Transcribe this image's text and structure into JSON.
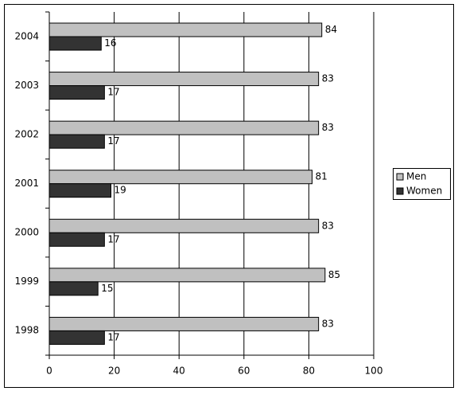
{
  "chart_data": {
    "type": "bar",
    "orientation": "horizontal",
    "categories": [
      "2004",
      "2003",
      "2002",
      "2001",
      "2000",
      "1999",
      "1998"
    ],
    "series": [
      {
        "name": "Men",
        "color": "#c0c0c0",
        "values": [
          84,
          83,
          83,
          81,
          83,
          85,
          83
        ]
      },
      {
        "name": "Women",
        "color": "#333333",
        "values": [
          16,
          17,
          17,
          19,
          17,
          15,
          17
        ]
      }
    ],
    "xlim": [
      0,
      100
    ],
    "xticks": [
      0,
      20,
      40,
      60,
      80,
      100
    ],
    "grid": true,
    "legend": "right",
    "data_labels": true
  }
}
